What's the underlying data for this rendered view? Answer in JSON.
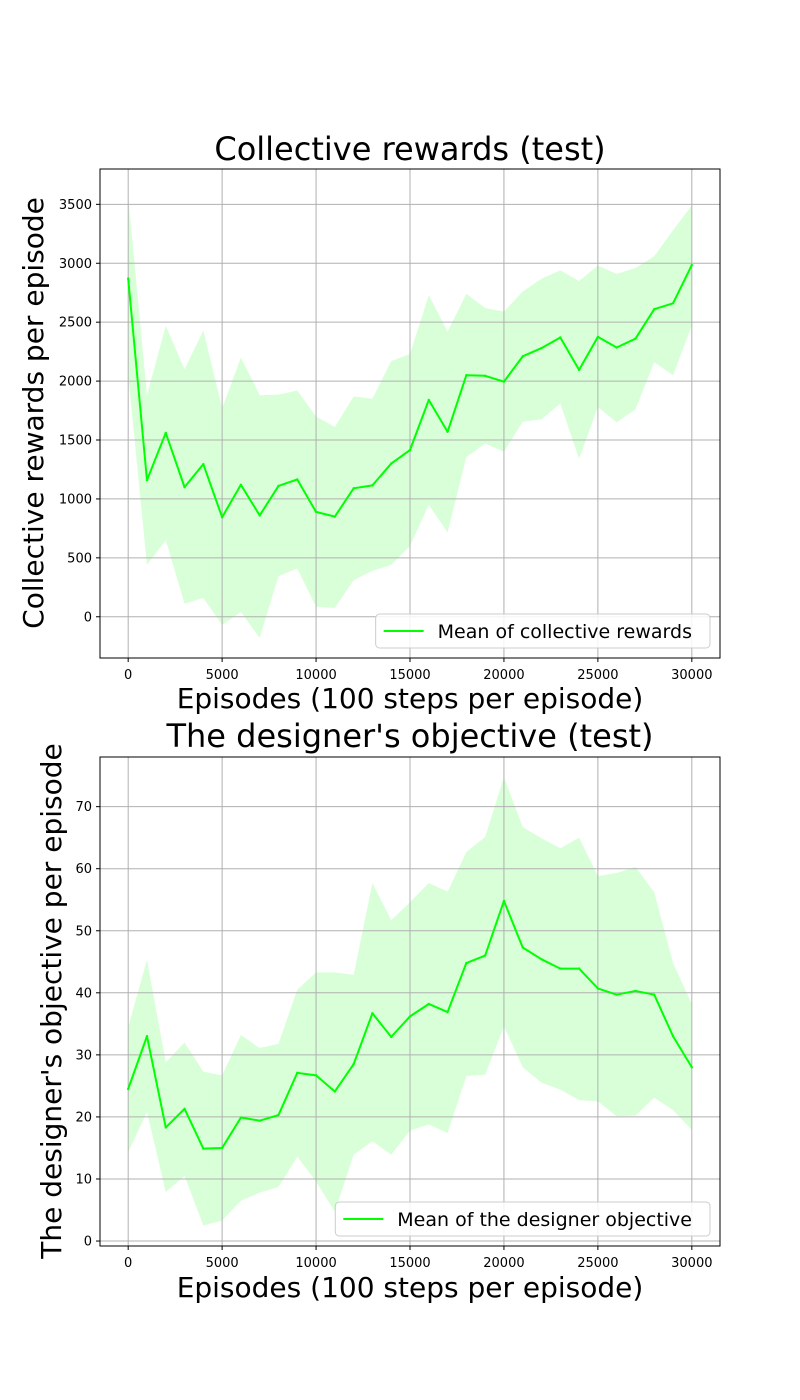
{
  "chart_data": [
    {
      "type": "line",
      "title": "Collective rewards (test)",
      "xlabel": "Episodes (100 steps per episode)",
      "ylabel": "Collective rewards per episode",
      "xlim": [
        -1500,
        31500
      ],
      "ylim": [
        -350,
        3800
      ],
      "xticks": [
        0,
        5000,
        10000,
        15000,
        20000,
        25000,
        30000
      ],
      "yticks": [
        0,
        500,
        1000,
        1500,
        2000,
        2500,
        3000,
        3500
      ],
      "grid": true,
      "legend_position": "lower-right",
      "line_color": "#00ff00",
      "band_color": "#d9ffd9",
      "series": [
        {
          "name": "Mean of collective rewards",
          "x": [
            0,
            1000,
            2000,
            3000,
            4000,
            5000,
            6000,
            7000,
            8000,
            9000,
            10000,
            11000,
            12000,
            13000,
            14000,
            15000,
            16000,
            17000,
            18000,
            19000,
            20000,
            21000,
            22000,
            23000,
            24000,
            25000,
            26000,
            27000,
            28000,
            29000,
            30000
          ],
          "values": [
            2870,
            1160,
            1560,
            1100,
            1295,
            845,
            1120,
            860,
            1110,
            1165,
            890,
            850,
            1090,
            1115,
            1300,
            1415,
            1840,
            1570,
            2050,
            2045,
            1995,
            2210,
            2280,
            2370,
            2095,
            2375,
            2285,
            2360,
            2610,
            2660,
            2985
          ],
          "upper": [
            3570,
            1880,
            2470,
            2100,
            2430,
            1770,
            2200,
            1880,
            1885,
            1920,
            1700,
            1610,
            1870,
            1850,
            2170,
            2230,
            2730,
            2420,
            2740,
            2620,
            2590,
            2760,
            2870,
            2940,
            2850,
            2980,
            2910,
            2960,
            3060,
            3280,
            3490
          ],
          "lower": [
            2050,
            440,
            650,
            110,
            160,
            -70,
            40,
            -180,
            345,
            410,
            85,
            75,
            310,
            390,
            440,
            600,
            950,
            715,
            1355,
            1470,
            1400,
            1655,
            1675,
            1810,
            1340,
            1780,
            1650,
            1760,
            2160,
            2050,
            2470
          ]
        }
      ]
    },
    {
      "type": "line",
      "title": "The designer's objective (test)",
      "xlabel": "Episodes (100 steps per episode)",
      "ylabel": "The designer's objective per episode",
      "xlim": [
        -1500,
        31500
      ],
      "ylim": [
        -0.8,
        78
      ],
      "xticks": [
        0,
        5000,
        10000,
        15000,
        20000,
        25000,
        30000
      ],
      "yticks": [
        0,
        10,
        20,
        30,
        40,
        50,
        60,
        70
      ],
      "grid": true,
      "legend_position": "lower-right",
      "line_color": "#00ff00",
      "band_color": "#d9ffd9",
      "series": [
        {
          "name": "Mean of the designer objective",
          "x": [
            0,
            1000,
            2000,
            3000,
            4000,
            5000,
            6000,
            7000,
            8000,
            9000,
            10000,
            11000,
            12000,
            13000,
            14000,
            15000,
            16000,
            17000,
            18000,
            19000,
            20000,
            21000,
            22000,
            23000,
            24000,
            25000,
            26000,
            27000,
            28000,
            29000,
            30000
          ],
          "values": [
            24.5,
            33.0,
            18.3,
            21.3,
            14.9,
            15.0,
            19.9,
            19.4,
            20.3,
            27.1,
            26.7,
            24.1,
            28.5,
            36.7,
            32.9,
            36.2,
            38.2,
            36.9,
            44.8,
            46.0,
            54.8,
            47.3,
            45.4,
            43.9,
            43.9,
            40.7,
            39.7,
            40.3,
            39.7,
            33.0,
            28.0
          ],
          "upper": [
            34.5,
            45.3,
            28.8,
            32.0,
            27.3,
            26.7,
            33.2,
            31.1,
            31.8,
            40.5,
            43.3,
            43.3,
            42.9,
            57.7,
            51.7,
            54.6,
            57.7,
            56.3,
            62.7,
            65.1,
            74.8,
            66.7,
            64.9,
            63.3,
            65.0,
            58.8,
            59.3,
            60.3,
            56.2,
            44.8,
            38.2
          ],
          "lower": [
            14.3,
            20.8,
            7.9,
            10.5,
            2.5,
            3.3,
            6.5,
            7.8,
            8.7,
            13.6,
            9.6,
            4.7,
            13.9,
            16.1,
            13.9,
            17.8,
            18.8,
            17.4,
            26.6,
            26.8,
            34.6,
            28.0,
            25.5,
            24.4,
            22.7,
            22.5,
            20.1,
            20.2,
            23.1,
            21.1,
            17.9
          ]
        }
      ]
    }
  ]
}
